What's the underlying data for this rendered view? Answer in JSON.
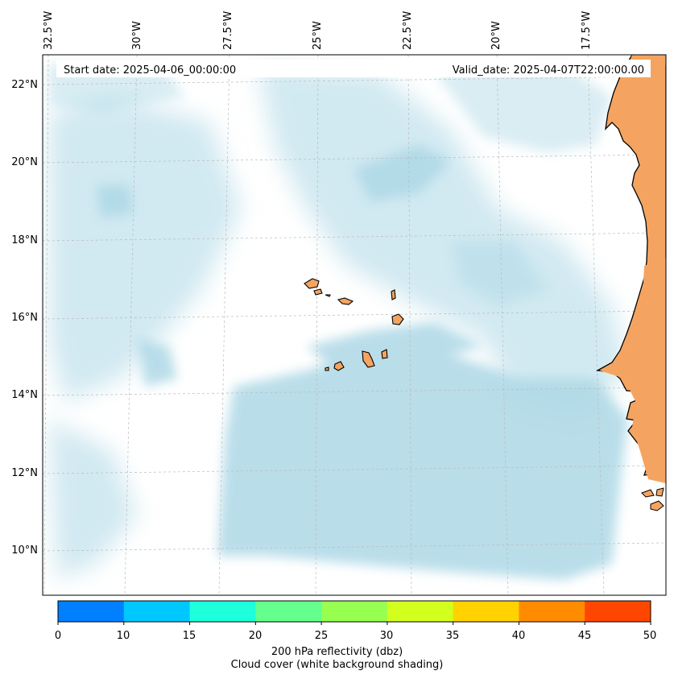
{
  "header": {
    "start_date": "Start date: 2025-04-06_00:00:00",
    "valid_date": "Valid_date: 2025-04-07T22:00:00.00"
  },
  "axes": {
    "lon_labels": [
      "32.5°W",
      "30°W",
      "27.5°W",
      "25°W",
      "22.5°W",
      "20°W",
      "17.5°W"
    ],
    "lat_labels": [
      "22°N",
      "20°N",
      "18°N",
      "16°N",
      "14°N",
      "12°N",
      "10°N"
    ]
  },
  "colors": {
    "land": "#f4a460",
    "cloud": "#add8e6",
    "ocean": "#ffffff",
    "grid": "#bbbbbb",
    "coast": "#000000"
  },
  "colorbar": {
    "ticks": [
      "0",
      "10",
      "15",
      "20",
      "25",
      "30",
      "35",
      "40",
      "45",
      "50"
    ],
    "colors": [
      "#0080ff",
      "#00c8ff",
      "#1effdc",
      "#64ff8c",
      "#96ff50",
      "#d2ff1e",
      "#ffd200",
      "#ff8c00",
      "#ff4600"
    ],
    "label": "200 hPa reflectivity (dbz)",
    "sublabel": "Cloud cover (white background shading)"
  }
}
